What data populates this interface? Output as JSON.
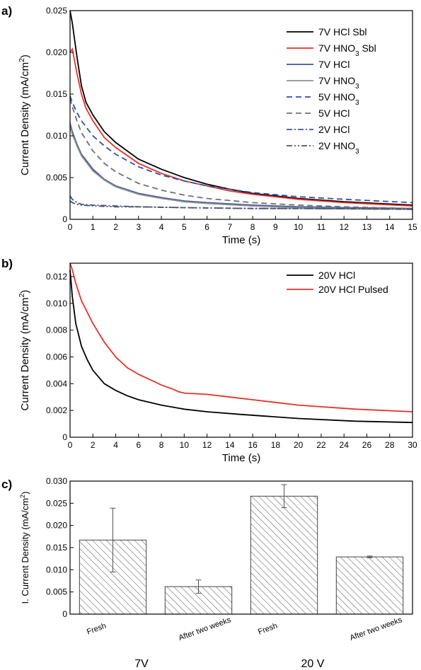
{
  "chart_data": [
    {
      "panel_label": "a)",
      "type": "line",
      "xlabel": "Time (s)",
      "ylabel": "Current Density (mA/cm²)",
      "xlim": [
        0,
        15
      ],
      "ylim": [
        0,
        0.025
      ],
      "x_ticks": [
        0,
        1,
        2,
        3,
        4,
        5,
        6,
        7,
        8,
        9,
        10,
        11,
        12,
        13,
        14,
        15
      ],
      "y_ticks": [
        0,
        0.005,
        0.01,
        0.015,
        0.02,
        0.025
      ],
      "y_tick_labels": [
        "0",
        "0.005",
        "0.010",
        "0.015",
        "0.020",
        "0.025"
      ],
      "legend_position": "top-right",
      "series": [
        {
          "name": "7V HCl Sbl",
          "color": "#000000",
          "dash": "solid",
          "x": [
            0,
            0.1,
            0.3,
            0.5,
            0.7,
            1,
            1.5,
            2,
            3,
            4,
            5,
            6,
            7,
            8,
            10,
            12,
            15
          ],
          "y": [
            0.025,
            0.0235,
            0.0195,
            0.016,
            0.014,
            0.0125,
            0.0105,
            0.0092,
            0.0072,
            0.006,
            0.005,
            0.0042,
            0.0036,
            0.0031,
            0.0025,
            0.0021,
            0.0017
          ]
        },
        {
          "name": "7V HNO3  Sbl",
          "name_prefix": "7V HNO",
          "name_sub": "3",
          "name_suffix": "  Sbl",
          "color": "#e8302a",
          "dash": "solid",
          "x": [
            0,
            0.1,
            0.3,
            0.5,
            0.7,
            1,
            1.5,
            2,
            3,
            4,
            5,
            6,
            7,
            8,
            10,
            12,
            15
          ],
          "y": [
            0.02,
            0.0204,
            0.0175,
            0.015,
            0.0133,
            0.0118,
            0.0098,
            0.0086,
            0.0067,
            0.0055,
            0.0046,
            0.004,
            0.0034,
            0.003,
            0.0024,
            0.002,
            0.0016
          ]
        },
        {
          "name": "7V HCl",
          "color": "#3a55a0",
          "dash": "solid",
          "x": [
            0,
            0.1,
            0.3,
            0.5,
            1,
            1.5,
            2,
            3,
            4,
            5,
            6,
            8,
            10,
            12,
            15
          ],
          "y": [
            0.0115,
            0.0105,
            0.009,
            0.0078,
            0.006,
            0.0048,
            0.004,
            0.0031,
            0.0026,
            0.0022,
            0.002,
            0.0017,
            0.0015,
            0.0014,
            0.0013
          ]
        },
        {
          "name": "7V HNO3",
          "name_prefix": "7V HNO",
          "name_sub": "3",
          "name_suffix": "",
          "color": "#909090",
          "dash": "solid",
          "x": [
            0,
            0.1,
            0.3,
            0.5,
            1,
            1.5,
            2,
            3,
            4,
            5,
            6,
            8,
            10,
            12,
            15
          ],
          "y": [
            0.0112,
            0.0102,
            0.0088,
            0.0076,
            0.0058,
            0.0047,
            0.0039,
            0.003,
            0.0025,
            0.0021,
            0.0019,
            0.0016,
            0.0014,
            0.0013,
            0.0012
          ]
        },
        {
          "name": "5V HNO3",
          "name_prefix": "5V HNO",
          "name_sub": "3",
          "name_suffix": "",
          "color": "#2f4ea8",
          "dash": "8,5",
          "x": [
            0,
            0.1,
            0.3,
            0.5,
            1,
            1.5,
            2,
            3,
            4,
            5,
            6,
            8,
            10,
            12,
            15
          ],
          "y": [
            0.0148,
            0.014,
            0.0128,
            0.0118,
            0.01,
            0.0088,
            0.0078,
            0.0063,
            0.0053,
            0.0046,
            0.004,
            0.0032,
            0.0027,
            0.0024,
            0.002
          ]
        },
        {
          "name": "5V HCl",
          "color": "#707070",
          "dash": "8,5",
          "x": [
            0,
            0.1,
            0.3,
            0.5,
            1,
            1.5,
            2,
            3,
            4,
            5,
            6,
            8,
            10,
            12,
            15
          ],
          "y": [
            0.0145,
            0.0135,
            0.0118,
            0.0104,
            0.0082,
            0.0067,
            0.0057,
            0.0043,
            0.0035,
            0.0029,
            0.0025,
            0.002,
            0.0017,
            0.0015,
            0.0013
          ]
        },
        {
          "name": "2V HCl",
          "color": "#3a55a0",
          "dash": "8,3,2,3",
          "x": [
            0,
            0.1,
            0.3,
            0.5,
            1,
            2,
            3,
            5,
            8,
            10,
            15
          ],
          "y": [
            0.0028,
            0.0024,
            0.002,
            0.0018,
            0.0017,
            0.0016,
            0.0015,
            0.0014,
            0.0013,
            0.0013,
            0.0012
          ]
        },
        {
          "name": "2V HNO3",
          "name_prefix": "2V HNO",
          "name_sub": "3",
          "name_suffix": "",
          "color": "#555555",
          "dash": "8,3,2,3,2,3",
          "x": [
            0,
            0.1,
            0.3,
            0.5,
            1,
            2,
            3,
            5,
            8,
            10,
            15
          ],
          "y": [
            0.0022,
            0.002,
            0.0018,
            0.0017,
            0.0016,
            0.0015,
            0.0015,
            0.0014,
            0.0013,
            0.0013,
            0.0012
          ]
        }
      ]
    },
    {
      "panel_label": "b)",
      "type": "line",
      "xlabel": "Time (s)",
      "ylabel": "Current Density (mA/cm²)",
      "xlim": [
        0,
        30
      ],
      "ylim": [
        0,
        0.013
      ],
      "x_ticks": [
        0,
        2,
        4,
        6,
        8,
        10,
        12,
        14,
        16,
        18,
        20,
        22,
        24,
        26,
        28,
        30
      ],
      "y_ticks": [
        0,
        0.002,
        0.004,
        0.006,
        0.008,
        0.01,
        0.012
      ],
      "y_tick_labels": [
        "0",
        "0.002",
        "0.004",
        "0.006",
        "0.008",
        "0.010",
        "0.012"
      ],
      "legend_position": "top-right",
      "series": [
        {
          "name": "20V HCl",
          "color": "#000000",
          "dash": "solid",
          "x": [
            0,
            0.2,
            0.5,
            1,
            1.5,
            2,
            3,
            4,
            5,
            6,
            8,
            10,
            12,
            15,
            20,
            25,
            30
          ],
          "y": [
            0.0125,
            0.0105,
            0.0085,
            0.0068,
            0.0058,
            0.005,
            0.004,
            0.0035,
            0.0031,
            0.0028,
            0.0024,
            0.0021,
            0.0019,
            0.0017,
            0.0014,
            0.0012,
            0.0011
          ]
        },
        {
          "name": "20V HCl Pulsed",
          "color": "#e8302a",
          "dash": "solid",
          "x": [
            0,
            0.2,
            0.5,
            1,
            2,
            3,
            4,
            5,
            6,
            7,
            8,
            9,
            9.5,
            10,
            12,
            14,
            16,
            18,
            20,
            25,
            30
          ],
          "y": [
            0.013,
            0.0125,
            0.0115,
            0.0102,
            0.0085,
            0.0071,
            0.006,
            0.0052,
            0.0047,
            0.0043,
            0.0039,
            0.0036,
            0.0034,
            0.0033,
            0.0032,
            0.003,
            0.0028,
            0.0026,
            0.0024,
            0.0021,
            0.0019
          ]
        }
      ]
    },
    {
      "panel_label": "c)",
      "type": "bar",
      "ylabel": "I. Current Density (mA/cm²)",
      "ylim": [
        0,
        0.03
      ],
      "y_ticks": [
        0,
        0.005,
        0.01,
        0.015,
        0.02,
        0.025,
        0.03
      ],
      "y_tick_labels": [
        "0",
        "0.005",
        "0.010",
        "0.015",
        "0.020",
        "0.025",
        "0.030"
      ],
      "groups": [
        "7V",
        "20 V"
      ],
      "categories": [
        "Fresh",
        "After two weeks",
        "Fresh",
        "After two weeks"
      ],
      "values": [
        0.0167,
        0.0062,
        0.0266,
        0.0129
      ],
      "errors": [
        0.0072,
        0.0015,
        0.0026,
        0.0002
      ],
      "fill": "hatched"
    }
  ]
}
